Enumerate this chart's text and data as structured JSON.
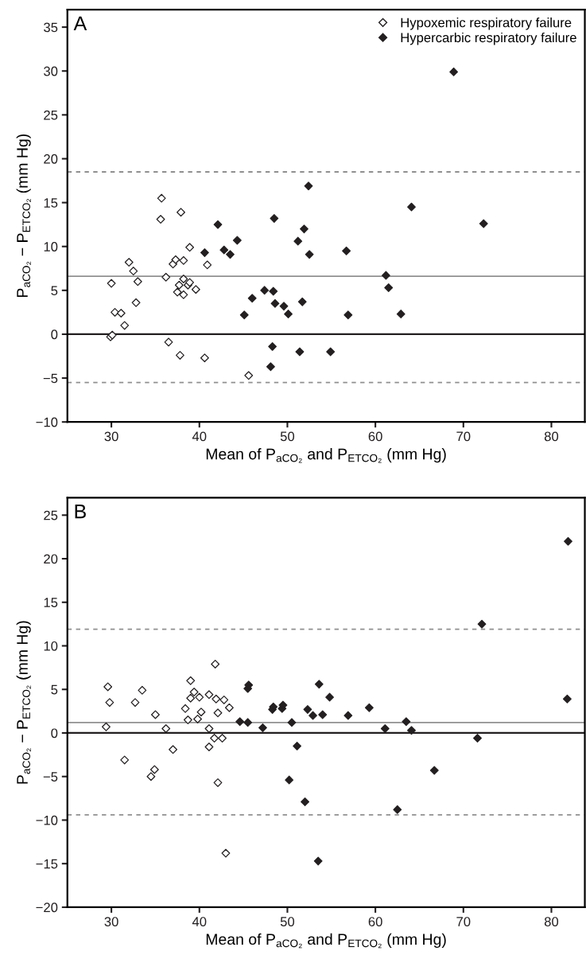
{
  "chart_data": [
    {
      "type": "scatter",
      "xlabel": "Mean of P$_{aCO₂}$ and P$_{ETCO₂}$ (mm Hg)",
      "ylabel": "P$_{aCO₂}$ − P$_{ETCO₂}$ (mm Hg)",
      "annotations": [
        "A"
      ],
      "xlim": [
        25,
        83.8
      ],
      "ylim": [
        -10,
        37
      ],
      "xticks": [
        30,
        40,
        50,
        60,
        70,
        80
      ],
      "yticks": [
        -10,
        -5,
        0,
        5,
        10,
        15,
        20,
        25,
        30,
        35
      ],
      "marker": "diamond",
      "legend": "top right",
      "grid": false,
      "series": [
        {
          "name": "Hypoxemic respiratory failure",
          "color": "#ffffff",
          "x": [
            30.0,
            29.9,
            30.1,
            30.4,
            31.1,
            31.5,
            32.0,
            32.5,
            32.8,
            33.0,
            35.6,
            35.7,
            36.2,
            36.5,
            37.0,
            37.3,
            37.5,
            37.7,
            37.8,
            37.9,
            38.2,
            38.2,
            38.2,
            38.7,
            38.9,
            38.9,
            39.6,
            40.6,
            40.9,
            45.6
          ],
          "values": [
            5.8,
            -0.3,
            -0.1,
            2.5,
            2.4,
            1.0,
            8.2,
            7.2,
            3.6,
            6.0,
            13.1,
            15.5,
            6.5,
            -0.9,
            8.0,
            8.5,
            4.8,
            5.6,
            -2.4,
            13.9,
            8.4,
            6.3,
            4.5,
            5.6,
            5.9,
            9.9,
            5.1,
            -2.7,
            7.9,
            -4.7
          ]
        },
        {
          "name": "Hypercarbic respiratory failure",
          "color": "#231f20",
          "x": [
            40.6,
            42.1,
            42.8,
            43.5,
            44.3,
            45.1,
            46.0,
            47.4,
            48.1,
            48.3,
            48.4,
            48.5,
            48.6,
            49.6,
            50.1,
            51.2,
            51.4,
            51.7,
            51.9,
            52.4,
            52.5,
            54.9,
            56.7,
            56.9,
            61.2,
            61.5,
            62.9,
            64.1,
            68.9,
            72.3
          ],
          "values": [
            9.3,
            12.5,
            9.6,
            9.1,
            10.7,
            2.2,
            4.1,
            5.0,
            -3.7,
            -1.4,
            4.9,
            13.2,
            3.5,
            3.2,
            2.3,
            10.6,
            -2.0,
            3.7,
            12.0,
            16.9,
            9.1,
            -2.0,
            9.5,
            2.2,
            6.7,
            5.3,
            2.3,
            14.5,
            29.9,
            12.6
          ]
        }
      ],
      "ref_lines": [
        {
          "axis": "y",
          "value": 0,
          "color": "#231f20",
          "line_style": "solid"
        },
        {
          "axis": "y",
          "value": 6.6,
          "color": "#909090",
          "line_style": "solid"
        },
        {
          "axis": "y",
          "value": 18.5,
          "color": "#909090",
          "line_style": "dashed"
        },
        {
          "axis": "y",
          "value": -5.5,
          "color": "#909090",
          "line_style": "dashed"
        }
      ]
    },
    {
      "type": "scatter",
      "xlabel": "Mean of P$_{aCO₂}$ and P$_{ETCO₂}$ (mm Hg)",
      "ylabel": "P$_{aCO₂}$ − P$_{ETCO₂}$ (mm Hg)",
      "annotations": [
        "B"
      ],
      "xlim": [
        25,
        83.8
      ],
      "ylim": [
        -20,
        27
      ],
      "xticks": [
        30,
        40,
        50,
        60,
        70,
        80
      ],
      "yticks": [
        -20,
        -15,
        -10,
        -5,
        0,
        5,
        10,
        15,
        20,
        25
      ],
      "marker": "diamond",
      "grid": false,
      "series": [
        {
          "color": "#ffffff",
          "x": [
            29.6,
            29.8,
            29.4,
            31.5,
            32.7,
            33.5,
            34.5,
            34.9,
            35.0,
            36.2,
            37.0,
            38.4,
            39.0,
            38.7,
            39.0,
            39.4,
            39.8,
            40.0,
            40.2,
            41.1,
            41.1,
            41.1,
            41.7,
            41.8,
            41.9,
            42.1,
            42.1,
            42.6,
            42.8,
            43.0,
            43.4
          ],
          "values": [
            5.3,
            3.5,
            0.7,
            -3.1,
            3.5,
            4.9,
            -5.0,
            -4.2,
            2.1,
            0.5,
            -1.9,
            2.8,
            6.0,
            1.5,
            4.0,
            4.7,
            1.6,
            4.1,
            2.4,
            4.4,
            0.5,
            -1.6,
            -0.6,
            7.9,
            3.9,
            2.3,
            -5.7,
            -0.6,
            3.8,
            -13.8,
            2.9
          ]
        },
        {
          "color": "#231f20",
          "x": [
            44.6,
            45.5,
            45.6,
            45.5,
            47.2,
            48.3,
            48.4,
            49.4,
            49.5,
            50.2,
            50.5,
            51.1,
            52.0,
            52.3,
            52.9,
            53.5,
            53.6,
            54.0,
            54.8,
            56.9,
            59.3,
            61.1,
            63.5,
            64.1,
            62.5,
            66.7,
            71.6,
            72.1,
            81.9,
            81.8
          ],
          "values": [
            1.3,
            5.1,
            5.5,
            1.2,
            0.6,
            2.7,
            3.0,
            2.8,
            3.2,
            -5.4,
            1.2,
            -1.5,
            -7.9,
            2.7,
            2.0,
            -14.7,
            5.6,
            2.1,
            4.1,
            2.0,
            2.9,
            0.5,
            1.3,
            0.3,
            -8.8,
            -4.3,
            -0.6,
            12.5,
            22.0,
            3.9
          ]
        }
      ],
      "ref_lines": [
        {
          "axis": "y",
          "value": 0,
          "color": "#231f20",
          "line_style": "solid"
        },
        {
          "axis": "y",
          "value": 1.2,
          "color": "#909090",
          "line_style": "solid"
        },
        {
          "axis": "y",
          "value": 11.9,
          "color": "#909090",
          "line_style": "dashed"
        },
        {
          "axis": "y",
          "value": -9.4,
          "color": "#909090",
          "line_style": "dashed"
        }
      ]
    }
  ]
}
